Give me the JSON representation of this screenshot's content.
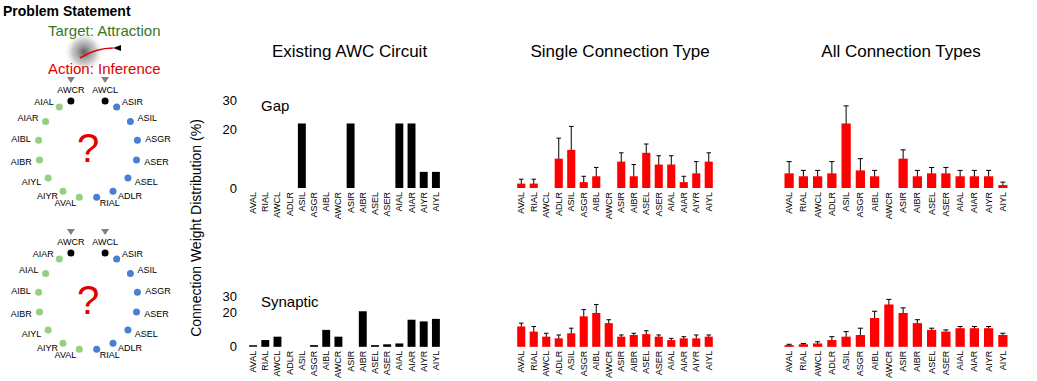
{
  "header": {
    "title": "Problem Statement"
  },
  "diagram": {
    "target": "Target: Attraction",
    "action": "Action: Inference",
    "circuits": [
      {
        "top": [
          "AWCR",
          "AWCL"
        ],
        "sensory": [
          "ASIR",
          "ASIL",
          "ASGR",
          "ASER",
          "ASEL",
          "ADLR",
          "RIAL"
        ],
        "interneurons": [
          "AIAL",
          "AIAR",
          "AIBL",
          "AIBR",
          "AIYL",
          "AIYR",
          "AVAL"
        ],
        "center": "?"
      },
      {
        "top": [
          "AWCR",
          "AWCL"
        ],
        "sensory": [
          "ASIR",
          "ASIL",
          "ASGR",
          "ASER",
          "ASEL",
          "ADLR",
          "RIAL"
        ],
        "interneurons": [
          "AIAR",
          "AIAL",
          "AIBL",
          "AIBR",
          "AIYL",
          "AIYR",
          "AVAL"
        ],
        "center": "?"
      }
    ]
  },
  "chart_data": [
    {
      "type": "bar",
      "title": "Existing AWC Circuit",
      "annotation": "Gap",
      "ylabel": "Connection Weight Distribution (%)",
      "categories": [
        "AVAL",
        "RIAL",
        "AWCL",
        "ADLR",
        "ASIL",
        "ASGR",
        "AIBL",
        "AWCR",
        "ASIR",
        "AIBR",
        "ASEL",
        "ASER",
        "AIAL",
        "AIAR",
        "AIYR",
        "AIYL"
      ],
      "values": [
        0,
        0,
        0,
        0,
        22,
        0,
        0,
        0,
        22,
        0,
        0,
        0,
        22,
        22,
        5.5,
        5.5
      ],
      "color": "#000000",
      "ylim": [
        0,
        30
      ],
      "yticks": [
        0,
        20,
        30
      ],
      "grid": false
    },
    {
      "type": "bar",
      "title": "Single Connection Type",
      "categories": [
        "AVAL",
        "RIAL",
        "AWCL",
        "ADLR",
        "ASIL",
        "ASGR",
        "AIBL",
        "AWCR",
        "ASIR",
        "AIBR",
        "ASEL",
        "ASER",
        "AIAL",
        "AIAR",
        "AIYR",
        "AIYL"
      ],
      "values": [
        1.5,
        1.5,
        0,
        10,
        13,
        2,
        4,
        0,
        9,
        4,
        12,
        8,
        8,
        2,
        5,
        9
      ],
      "errors": [
        1.5,
        1.5,
        0,
        7,
        8,
        2,
        3,
        0,
        3,
        4,
        3,
        3,
        3,
        2,
        4,
        3
      ],
      "color": "#ff0000",
      "ylim": [
        0,
        30
      ],
      "yticks": [
        0,
        20,
        30
      ],
      "grid": false,
      "tick_labels": "x"
    },
    {
      "type": "bar",
      "title": "All Connection Types",
      "categories": [
        "AVAL",
        "RIAL",
        "AWCL",
        "ADLR",
        "ASIL",
        "ASGR",
        "AIBL",
        "AWCR",
        "ASIR",
        "AIBR",
        "ASEL",
        "ASER",
        "AIAL",
        "AIAR",
        "AIYR",
        "AIYL"
      ],
      "values": [
        5,
        4,
        4,
        5,
        22,
        6,
        4,
        0,
        10,
        4,
        5,
        5,
        4,
        4,
        4,
        1
      ],
      "errors": [
        4,
        2,
        2,
        4,
        6,
        4,
        2,
        0,
        3,
        2,
        2,
        2,
        2,
        2,
        2,
        1
      ],
      "color": "#ff0000",
      "ylim": [
        0,
        30
      ],
      "yticks": [
        0,
        20,
        30
      ],
      "grid": false,
      "tick_labels": "x"
    },
    {
      "type": "bar",
      "annotation": "Synaptic",
      "categories": [
        "AVAL",
        "RIAL",
        "AWCL",
        "ADLR",
        "ASIL",
        "ASGR",
        "AIBL",
        "AWCR",
        "ASIR",
        "AIBR",
        "ASEL",
        "ASER",
        "AIAL",
        "AIAR",
        "AIYR",
        "AIYL"
      ],
      "values": [
        1,
        4,
        6,
        0,
        0,
        1,
        10,
        6,
        0,
        21,
        1,
        1.5,
        2,
        16,
        15,
        16.5
      ],
      "color": "#000000",
      "ylim": [
        0,
        30
      ],
      "yticks": [
        0,
        20,
        30
      ],
      "grid": false
    },
    {
      "type": "bar",
      "categories": [
        "AVAL",
        "RIAL",
        "AWCL",
        "ADLR",
        "ASIL",
        "ASGR",
        "AIBL",
        "AWCR",
        "ASIR",
        "AIBR",
        "ASEL",
        "ASER",
        "AIAL",
        "AIAR",
        "AIYR",
        "AIYL"
      ],
      "values": [
        12,
        9,
        6,
        5,
        8,
        18,
        20,
        14,
        6,
        7,
        7.5,
        6,
        4,
        5,
        5,
        6
      ],
      "errors": [
        2,
        3,
        2,
        2,
        3,
        4,
        5,
        2,
        1,
        1,
        2,
        1,
        1,
        1,
        2,
        1
      ],
      "color": "#ff0000",
      "ylim": [
        0,
        30
      ],
      "yticks": [
        0,
        20,
        30
      ],
      "grid": false,
      "tick_labels": "x"
    },
    {
      "type": "bar",
      "categories": [
        "AVAL",
        "RIAL",
        "AWCL",
        "ADLR",
        "ASIL",
        "ASGR",
        "AIBL",
        "AWCR",
        "ASIR",
        "AIBR",
        "ASEL",
        "ASER",
        "AIAL",
        "AIAR",
        "AIYR",
        "AIYL"
      ],
      "values": [
        1,
        1.5,
        2,
        4,
        6,
        7,
        17,
        25,
        20,
        14,
        10,
        9,
        11,
        11,
        11,
        7
      ],
      "errors": [
        0.5,
        0.5,
        1,
        2,
        3,
        4,
        4,
        3,
        3,
        2,
        1,
        1,
        1,
        1,
        1,
        1
      ],
      "color": "#ff0000",
      "ylim": [
        0,
        30
      ],
      "yticks": [
        0,
        20,
        30
      ],
      "grid": false,
      "tick_labels": "x"
    }
  ]
}
